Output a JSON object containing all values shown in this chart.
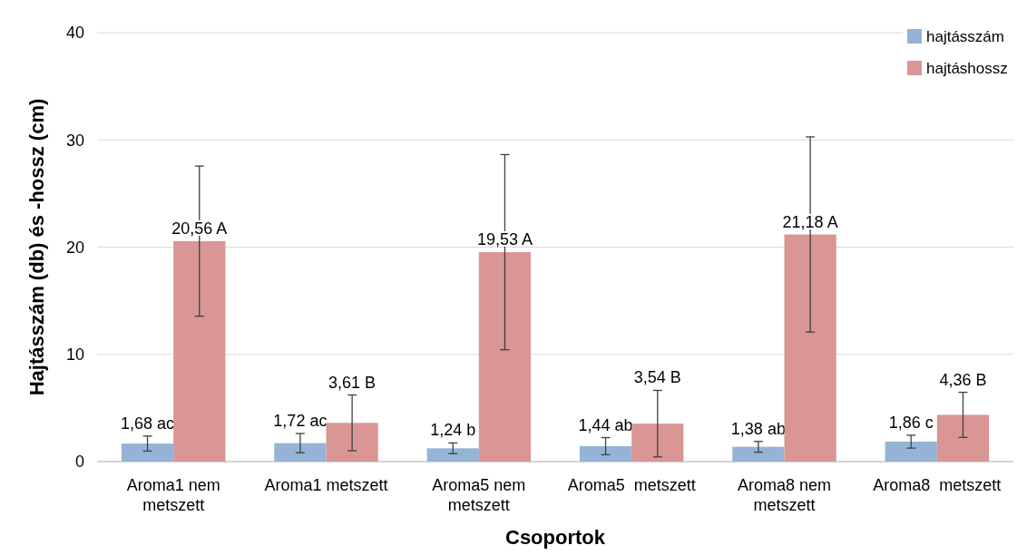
{
  "chart_data": {
    "type": "bar",
    "xlabel": "Csoportok",
    "ylabel": "Hajtásszám (db) és -hossz (cm)",
    "categories": [
      "Aroma1 nem metszett",
      "Aroma1 metszett",
      "Aroma5 nem metszett",
      "Aroma5  metszett",
      "Aroma8 nem metszett",
      "Aroma8  metszett"
    ],
    "series": [
      {
        "name": "hajtásszám",
        "color": "#95b3d7",
        "values": [
          1.68,
          1.72,
          1.24,
          1.44,
          1.38,
          1.86
        ],
        "errors": [
          0.7,
          0.9,
          0.5,
          0.8,
          0.5,
          0.6
        ],
        "value_labels": [
          "1,68 ac",
          "1,72 ac",
          "1,24 b",
          "1,44 ab",
          "1,38 ab",
          "1,86 c"
        ]
      },
      {
        "name": "hajtáshossz",
        "color": "#d99694",
        "values": [
          20.56,
          3.61,
          19.53,
          3.54,
          21.18,
          4.36
        ],
        "errors": [
          7.0,
          2.6,
          9.1,
          3.1,
          9.1,
          2.1
        ],
        "value_labels": [
          "20,56 A",
          "3,61 B",
          "19,53 A",
          "3,54 B",
          "21,18 A",
          "4,36 B"
        ]
      }
    ],
    "ylim": [
      0,
      40
    ],
    "yticks": [
      0,
      10,
      20,
      30,
      40
    ],
    "grid": "y",
    "legend": "top right"
  }
}
